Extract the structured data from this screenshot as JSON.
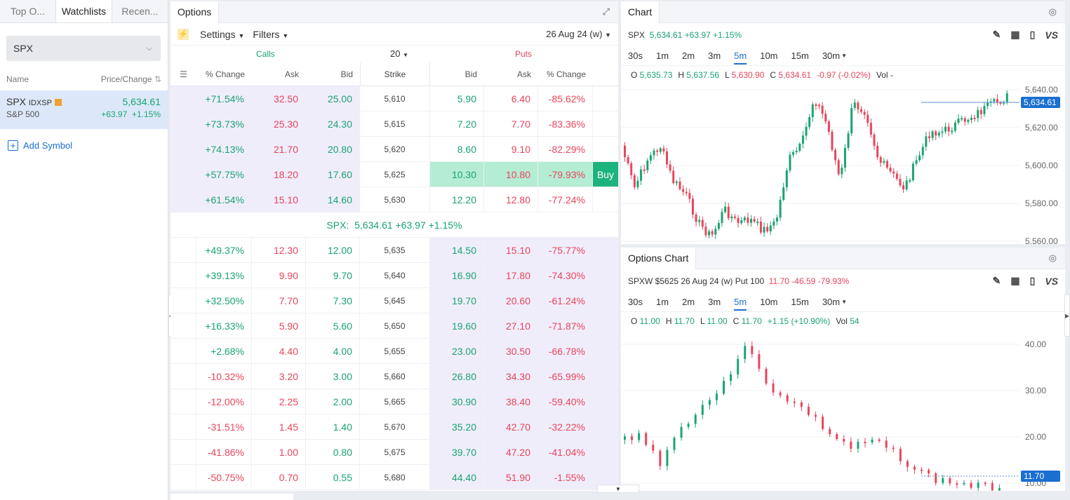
{
  "left": {
    "tabs": [
      "Top O...",
      "Watchlists",
      "Recen..."
    ],
    "select_value": "SPX",
    "col_name": "Name",
    "col_price": "Price/Change",
    "item": {
      "symbol": "SPX",
      "exchange": "IDXSP",
      "name": "S&P 500",
      "price": "5,634.61",
      "change": "+63.97",
      "pct": "+1.15%"
    },
    "add_symbol": "Add Symbol"
  },
  "options": {
    "title": "Options",
    "settings": "Settings",
    "filters": "Filters",
    "expiry": "26 Aug 24 (w)",
    "calls": "Calls",
    "puts": "Puts",
    "strikes_count": "20",
    "headers": [
      "% Change",
      "Ask",
      "Bid",
      "Strike",
      "Bid",
      "Ask",
      "% Change"
    ],
    "buy_label": "Buy",
    "spx_line": {
      "label": "SPX:",
      "price": "5,634.61",
      "change": "+63.97",
      "pct": "+1.15%"
    },
    "rows_above": [
      {
        "cp": "+71.54%",
        "ca": "32.50",
        "cb": "25.00",
        "k": "5,610",
        "pb": "5.90",
        "pa": "6.40",
        "pp": "-85.62%"
      },
      {
        "cp": "+73.73%",
        "ca": "25.30",
        "cb": "24.30",
        "k": "5,615",
        "pb": "7.20",
        "pa": "7.70",
        "pp": "-83.36%"
      },
      {
        "cp": "+74.13%",
        "ca": "21.70",
        "cb": "20.80",
        "k": "5,620",
        "pb": "8.60",
        "pa": "9.10",
        "pp": "-82.29%"
      },
      {
        "cp": "+57.75%",
        "ca": "18.20",
        "cb": "17.60",
        "k": "5,625",
        "pb": "10.30",
        "pa": "10.80",
        "pp": "-79.93%"
      },
      {
        "cp": "+61.54%",
        "ca": "15.10",
        "cb": "14.60",
        "k": "5,630",
        "pb": "12.20",
        "pa": "12.80",
        "pp": "-77.24%"
      }
    ],
    "rows_below": [
      {
        "cp": "+49.37%",
        "ca": "12.30",
        "cb": "12.00",
        "k": "5,635",
        "pb": "14.50",
        "pa": "15.10",
        "pp": "-75.77%"
      },
      {
        "cp": "+39.13%",
        "ca": "9.90",
        "cb": "9.70",
        "k": "5,640",
        "pb": "16.90",
        "pa": "17.80",
        "pp": "-74.30%"
      },
      {
        "cp": "+32.50%",
        "ca": "7.70",
        "cb": "7.30",
        "k": "5,645",
        "pb": "19.70",
        "pa": "20.60",
        "pp": "-61.24%"
      },
      {
        "cp": "+16.33%",
        "ca": "5.90",
        "cb": "5.60",
        "k": "5,650",
        "pb": "19.60",
        "pa": "27.10",
        "pp": "-71.87%"
      },
      {
        "cp": "+2.68%",
        "ca": "4.40",
        "cb": "4.00",
        "k": "5,655",
        "pb": "23.00",
        "pa": "30.50",
        "pp": "-66.78%"
      },
      {
        "cp": "-10.32%",
        "ca": "3.20",
        "cb": "3.00",
        "k": "5,660",
        "pb": "26.80",
        "pa": "34.30",
        "pp": "-65.99%"
      },
      {
        "cp": "-12.00%",
        "ca": "2.25",
        "cb": "2.00",
        "k": "5,665",
        "pb": "30.90",
        "pa": "38.40",
        "pp": "-59.40%"
      },
      {
        "cp": "-31.51%",
        "ca": "1.45",
        "cb": "1.40",
        "k": "5,670",
        "pb": "35.20",
        "pa": "42.70",
        "pp": "-32.22%"
      },
      {
        "cp": "-41.86%",
        "ca": "1.00",
        "cb": "0.80",
        "k": "5,675",
        "pb": "39.70",
        "pa": "47.20",
        "pp": "-41.04%"
      },
      {
        "cp": "-50.75%",
        "ca": "0.70",
        "cb": "0.55",
        "k": "5,680",
        "pb": "44.40",
        "pa": "51.90",
        "pp": "-1.55%"
      }
    ]
  },
  "chart": {
    "title": "Chart",
    "symbol": "SPX",
    "price": "5,634.61",
    "change": "+63.97",
    "pct": "+1.15%",
    "timeframes": [
      "30s",
      "1m",
      "2m",
      "3m",
      "5m",
      "10m",
      "15m",
      "30m"
    ],
    "active_tf": "5m",
    "o": "5,635.73",
    "h": "5,637.56",
    "l": "5,630.90",
    "c": "5,634.61",
    "chg": "-0.97 (-0.02%)",
    "vol": "-",
    "ticks": [
      "5,640.00",
      "5,620.00",
      "5,600.00",
      "5,580.00",
      "5,560.00"
    ],
    "last_label": "5,634.61"
  },
  "options_chart": {
    "title": "Options Chart",
    "contract": "SPXW $5625 26 Aug 24 (w) Put 100",
    "price": "11.70",
    "change": "-46.59",
    "pct": "-79.93%",
    "timeframes": [
      "30s",
      "1m",
      "2m",
      "3m",
      "5m",
      "10m",
      "15m",
      "30m"
    ],
    "active_tf": "5m",
    "o": "11.00",
    "h": "11.70",
    "l": "11.00",
    "c": "11.70",
    "chg": "+1.15 (+10.90%)",
    "vol": "54",
    "ticks": [
      "40.00",
      "30.00",
      "20.00",
      "10.00"
    ],
    "last_label": "11.70"
  },
  "colors": {
    "up": "#1aa370",
    "down": "#e8455b",
    "accent": "#1a6fd0",
    "itm": "#f0edfb",
    "buy": "#1cb37d"
  }
}
